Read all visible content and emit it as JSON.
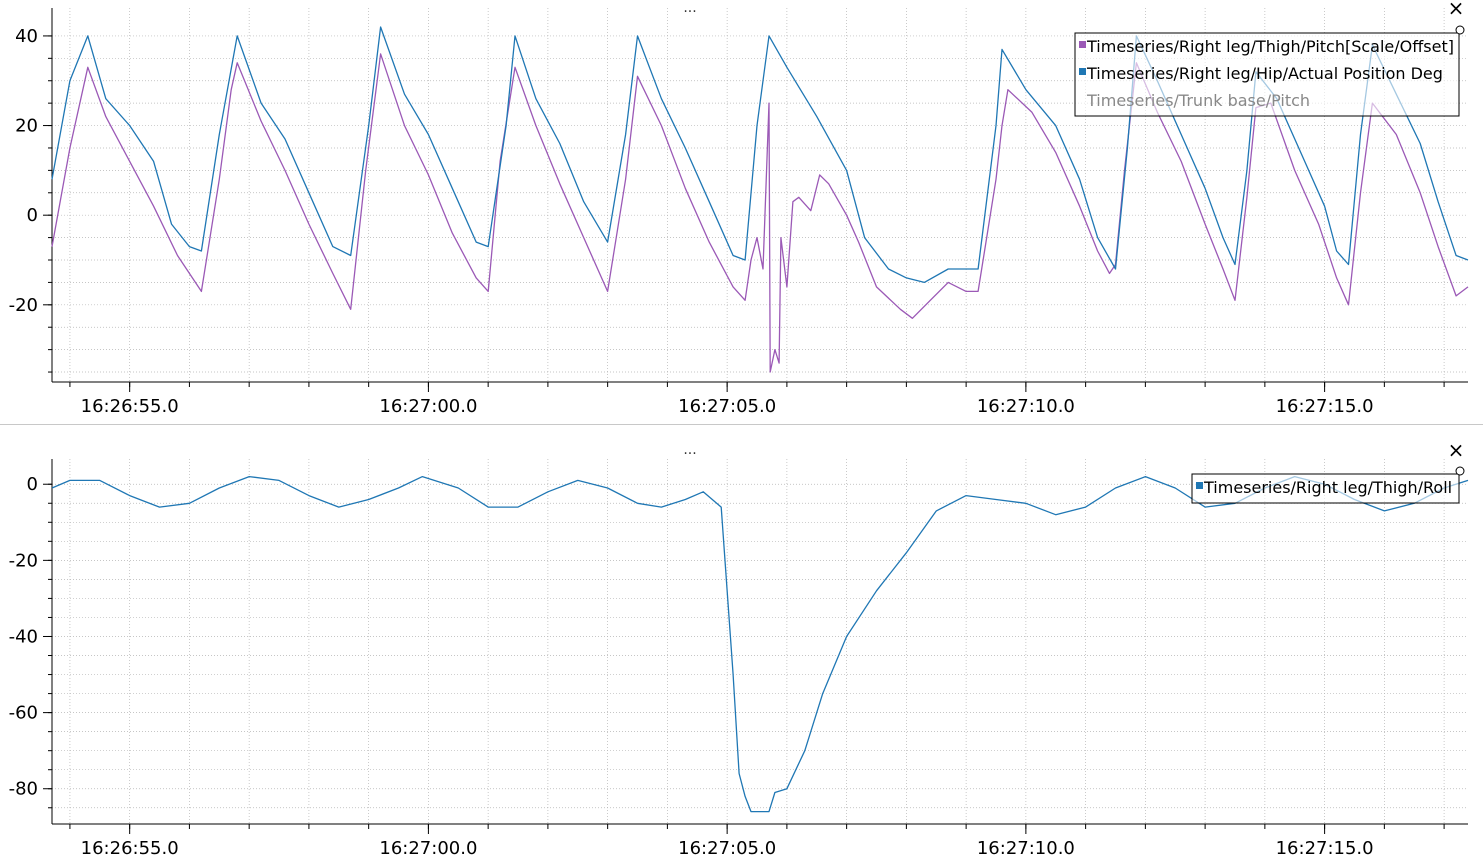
{
  "chart_data": [
    {
      "type": "line",
      "ylim": [
        -37,
        44
      ],
      "xlim": [
        "16:26:53.7",
        "16:27:17.4"
      ],
      "x_ticks": [
        "16:26:55.0",
        "16:27:00.0",
        "16:27:05.0",
        "16:27:10.0",
        "16:27:15.0"
      ],
      "y_ticks": [
        40,
        20,
        0,
        -20
      ],
      "grid": true,
      "legend": "top-right",
      "menu_label": "...",
      "close_label": "×",
      "series": [
        {
          "name": "Timeseries/Right leg/Thigh/Pitch[Scale/Offset]",
          "color": "#9b59b6",
          "visible": true,
          "points": [
            [
              "16:26:53.7",
              -7
            ],
            [
              "16:26:54.0",
              15
            ],
            [
              "16:26:54.3",
              33
            ],
            [
              "16:26:54.6",
              22
            ],
            [
              "16:26:55.0",
              12
            ],
            [
              "16:26:55.4",
              2
            ],
            [
              "16:26:55.8",
              -9
            ],
            [
              "16:26:56.2",
              -17
            ],
            [
              "16:26:56.5",
              8
            ],
            [
              "16:26:56.7",
              28
            ],
            [
              "16:26:56.8",
              34
            ],
            [
              "16:26:57.2",
              21
            ],
            [
              "16:26:57.6",
              10
            ],
            [
              "16:26:58.0",
              -2
            ],
            [
              "16:26:58.4",
              -13
            ],
            [
              "16:26:58.7",
              -21
            ],
            [
              "16:26:58.95",
              10
            ],
            [
              "16:26:59.2",
              36
            ],
            [
              "16:26:59.6",
              20
            ],
            [
              "16:27:00.0",
              9
            ],
            [
              "16:27:00.4",
              -4
            ],
            [
              "16:27:00.8",
              -14
            ],
            [
              "16:27:01.0",
              -17
            ],
            [
              "16:27:01.2",
              12
            ],
            [
              "16:27:01.45",
              33
            ],
            [
              "16:27:01.8",
              20
            ],
            [
              "16:27:02.2",
              7
            ],
            [
              "16:27:02.6",
              -5
            ],
            [
              "16:27:03.0",
              -17
            ],
            [
              "16:27:03.3",
              8
            ],
            [
              "16:27:03.5",
              31
            ],
            [
              "16:27:03.9",
              20
            ],
            [
              "16:27:04.3",
              6
            ],
            [
              "16:27:04.7",
              -6
            ],
            [
              "16:27:05.1",
              -16
            ],
            [
              "16:27:05.3",
              -19
            ],
            [
              "16:27:05.4",
              -10
            ],
            [
              "16:27:05.5",
              -5
            ],
            [
              "16:27:05.6",
              -12
            ],
            [
              "16:27:05.7",
              25
            ],
            [
              "16:27:05.72",
              -35
            ],
            [
              "16:27:05.8",
              -30
            ],
            [
              "16:27:05.87",
              -33
            ],
            [
              "16:27:05.9",
              -5
            ],
            [
              "16:27:06.0",
              -16
            ],
            [
              "16:27:06.1",
              3
            ],
            [
              "16:27:06.2",
              4
            ],
            [
              "16:27:06.4",
              1
            ],
            [
              "16:27:06.55",
              9
            ],
            [
              "16:27:06.7",
              7
            ],
            [
              "16:27:07.0",
              0
            ],
            [
              "16:27:07.2",
              -6
            ],
            [
              "16:27:07.5",
              -16
            ],
            [
              "16:27:07.9",
              -21
            ],
            [
              "16:27:08.1",
              -23
            ],
            [
              "16:27:08.4",
              -19
            ],
            [
              "16:27:08.7",
              -15
            ],
            [
              "16:27:09.0",
              -17
            ],
            [
              "16:27:09.2",
              -17
            ],
            [
              "16:27:09.5",
              8
            ],
            [
              "16:27:09.6",
              20
            ],
            [
              "16:27:09.7",
              28
            ],
            [
              "16:27:10.1",
              23
            ],
            [
              "16:27:10.5",
              14
            ],
            [
              "16:27:10.9",
              2
            ],
            [
              "16:27:11.2",
              -8
            ],
            [
              "16:27:11.4",
              -13
            ],
            [
              "16:27:11.5",
              -11
            ],
            [
              "16:27:11.65",
              10
            ],
            [
              "16:27:11.85",
              34
            ],
            [
              "16:27:12.2",
              23
            ],
            [
              "16:27:12.6",
              12
            ],
            [
              "16:27:13.0",
              -2
            ],
            [
              "16:27:13.3",
              -12
            ],
            [
              "16:27:13.5",
              -19
            ],
            [
              "16:27:13.7",
              4
            ],
            [
              "16:27:13.85",
              24
            ],
            [
              "16:27:14.1",
              25
            ],
            [
              "16:27:14.5",
              10
            ],
            [
              "16:27:14.9",
              -2
            ],
            [
              "16:27:15.2",
              -14
            ],
            [
              "16:27:15.4",
              -20
            ],
            [
              "16:27:15.6",
              5
            ],
            [
              "16:27:15.8",
              25
            ],
            [
              "16:27:16.2",
              18
            ],
            [
              "16:27:16.6",
              5
            ],
            [
              "16:27:16.9",
              -7
            ],
            [
              "16:27:17.2",
              -18
            ],
            [
              "16:27:17.4",
              -16
            ]
          ]
        },
        {
          "name": "Timeseries/Right leg/Hip/Actual Position Deg",
          "color": "#1f77b4",
          "visible": true,
          "points": [
            [
              "16:26:53.7",
              8
            ],
            [
              "16:26:54.0",
              30
            ],
            [
              "16:26:54.3",
              40
            ],
            [
              "16:26:54.6",
              26
            ],
            [
              "16:26:55.0",
              20
            ],
            [
              "16:26:55.4",
              12
            ],
            [
              "16:26:55.7",
              -2
            ],
            [
              "16:26:56.0",
              -7
            ],
            [
              "16:26:56.2",
              -8
            ],
            [
              "16:26:56.5",
              18
            ],
            [
              "16:26:56.8",
              40
            ],
            [
              "16:26:57.2",
              25
            ],
            [
              "16:26:57.6",
              17
            ],
            [
              "16:26:58.0",
              5
            ],
            [
              "16:26:58.4",
              -7
            ],
            [
              "16:26:58.7",
              -9
            ],
            [
              "16:26:59.0",
              20
            ],
            [
              "16:26:59.2",
              42
            ],
            [
              "16:26:59.6",
              27
            ],
            [
              "16:27:00.0",
              18
            ],
            [
              "16:27:00.4",
              6
            ],
            [
              "16:27:00.8",
              -6
            ],
            [
              "16:27:01.0",
              -7
            ],
            [
              "16:27:01.3",
              20
            ],
            [
              "16:27:01.45",
              40
            ],
            [
              "16:27:01.8",
              26
            ],
            [
              "16:27:02.2",
              16
            ],
            [
              "16:27:02.6",
              3
            ],
            [
              "16:27:03.0",
              -6
            ],
            [
              "16:27:03.3",
              18
            ],
            [
              "16:27:03.5",
              40
            ],
            [
              "16:27:03.9",
              26
            ],
            [
              "16:27:04.3",
              15
            ],
            [
              "16:27:04.7",
              3
            ],
            [
              "16:27:05.1",
              -9
            ],
            [
              "16:27:05.3",
              -10
            ],
            [
              "16:27:05.5",
              20
            ],
            [
              "16:27:05.7",
              40
            ],
            [
              "16:27:06.0",
              33
            ],
            [
              "16:27:06.5",
              22
            ],
            [
              "16:27:07.0",
              10
            ],
            [
              "16:27:07.3",
              -5
            ],
            [
              "16:27:07.7",
              -12
            ],
            [
              "16:27:08.0",
              -14
            ],
            [
              "16:27:08.3",
              -15
            ],
            [
              "16:27:08.7",
              -12
            ],
            [
              "16:27:09.2",
              -12
            ],
            [
              "16:27:09.5",
              20
            ],
            [
              "16:27:09.6",
              37
            ],
            [
              "16:27:10.0",
              28
            ],
            [
              "16:27:10.5",
              20
            ],
            [
              "16:27:10.9",
              8
            ],
            [
              "16:27:11.2",
              -5
            ],
            [
              "16:27:11.5",
              -12
            ],
            [
              "16:27:11.7",
              15
            ],
            [
              "16:27:11.85",
              40
            ],
            [
              "16:27:12.2",
              30
            ],
            [
              "16:27:12.6",
              18
            ],
            [
              "16:27:13.0",
              6
            ],
            [
              "16:27:13.3",
              -5
            ],
            [
              "16:27:13.5",
              -11
            ],
            [
              "16:27:13.7",
              10
            ],
            [
              "16:27:13.85",
              32
            ],
            [
              "16:27:14.2",
              26
            ],
            [
              "16:27:14.6",
              14
            ],
            [
              "16:27:15.0",
              2
            ],
            [
              "16:27:15.2",
              -8
            ],
            [
              "16:27:15.4",
              -11
            ],
            [
              "16:27:15.6",
              18
            ],
            [
              "16:27:15.8",
              38
            ],
            [
              "16:27:16.2",
              27
            ],
            [
              "16:27:16.6",
              16
            ],
            [
              "16:27:16.9",
              3
            ],
            [
              "16:27:17.2",
              -9
            ],
            [
              "16:27:17.4",
              -10
            ]
          ]
        },
        {
          "name": "Timeseries/Trunk base/Pitch",
          "color": "#999999",
          "visible": false,
          "points": []
        }
      ]
    },
    {
      "type": "line",
      "ylim": [
        -89,
        4
      ],
      "xlim": [
        "16:26:53.7",
        "16:27:17.4"
      ],
      "x_ticks": [
        "16:26:55.0",
        "16:27:00.0",
        "16:27:05.0",
        "16:27:10.0",
        "16:27:15.0"
      ],
      "y_ticks": [
        0,
        -20,
        -40,
        -60,
        -80
      ],
      "grid": true,
      "legend": "top-right",
      "menu_label": "...",
      "close_label": "×",
      "series": [
        {
          "name": "Timeseries/Right leg/Thigh/Roll",
          "color": "#1f77b4",
          "visible": true,
          "points": [
            [
              "16:26:53.7",
              -1
            ],
            [
              "16:26:54.0",
              1
            ],
            [
              "16:26:54.5",
              1
            ],
            [
              "16:26:55.0",
              -3
            ],
            [
              "16:26:55.5",
              -6
            ],
            [
              "16:26:56.0",
              -5
            ],
            [
              "16:26:56.5",
              -1
            ],
            [
              "16:26:57.0",
              2
            ],
            [
              "16:26:57.5",
              1
            ],
            [
              "16:26:58.0",
              -3
            ],
            [
              "16:26:58.5",
              -6
            ],
            [
              "16:26:59.0",
              -4
            ],
            [
              "16:26:59.5",
              -1
            ],
            [
              "16:26:59.9",
              2
            ],
            [
              "16:27:00.5",
              -1
            ],
            [
              "16:27:01.0",
              -6
            ],
            [
              "16:27:01.5",
              -6
            ],
            [
              "16:27:02.0",
              -2
            ],
            [
              "16:27:02.5",
              1
            ],
            [
              "16:27:03.0",
              -1
            ],
            [
              "16:27:03.5",
              -5
            ],
            [
              "16:27:03.9",
              -6
            ],
            [
              "16:27:04.3",
              -4
            ],
            [
              "16:27:04.6",
              -2
            ],
            [
              "16:27:04.9",
              -6
            ],
            [
              "16:27:05.1",
              -50
            ],
            [
              "16:27:05.2",
              -76
            ],
            [
              "16:27:05.3",
              -82
            ],
            [
              "16:27:05.4",
              -86
            ],
            [
              "16:27:05.7",
              -86
            ],
            [
              "16:27:05.8",
              -81
            ],
            [
              "16:27:06.0",
              -80
            ],
            [
              "16:27:06.3",
              -70
            ],
            [
              "16:27:06.6",
              -55
            ],
            [
              "16:27:07.0",
              -40
            ],
            [
              "16:27:07.5",
              -28
            ],
            [
              "16:27:08.0",
              -18
            ],
            [
              "16:27:08.5",
              -7
            ],
            [
              "16:27:09.0",
              -3
            ],
            [
              "16:27:09.5",
              -4
            ],
            [
              "16:27:10.0",
              -5
            ],
            [
              "16:27:10.5",
              -8
            ],
            [
              "16:27:11.0",
              -6
            ],
            [
              "16:27:11.5",
              -1
            ],
            [
              "16:27:12.0",
              2
            ],
            [
              "16:27:12.5",
              -1
            ],
            [
              "16:27:13.0",
              -6
            ],
            [
              "16:27:13.5",
              -5
            ],
            [
              "16:27:14.0",
              -1
            ],
            [
              "16:27:14.5",
              2
            ],
            [
              "16:27:15.0",
              0
            ],
            [
              "16:27:15.5",
              -4
            ],
            [
              "16:27:16.0",
              -7
            ],
            [
              "16:27:16.5",
              -5
            ],
            [
              "16:27:17.0",
              -1
            ],
            [
              "16:27:17.4",
              1
            ]
          ]
        }
      ]
    }
  ]
}
